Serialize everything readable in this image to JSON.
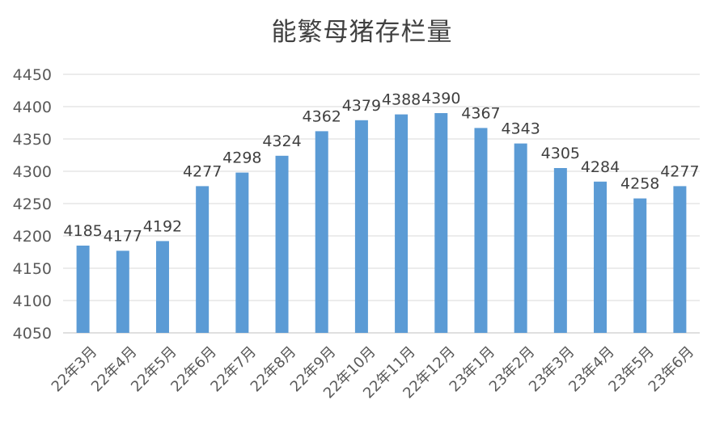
{
  "chart_data": {
    "type": "bar",
    "title": "能繁母猪存栏量",
    "categories": [
      "22年3月",
      "22年4月",
      "22年5月",
      "22年6月",
      "22年7月",
      "22年8月",
      "22年9月",
      "22年10月",
      "22年11月",
      "22年12月",
      "23年1月",
      "23年2月",
      "23年3月",
      "23年4月",
      "23年5月",
      "23年6月"
    ],
    "values": [
      4185,
      4177,
      4192,
      4277,
      4298,
      4324,
      4362,
      4379,
      4388,
      4390,
      4367,
      4343,
      4305,
      4284,
      4258,
      4277
    ],
    "yticks": [
      "4050",
      "4100",
      "4150",
      "4200",
      "4250",
      "4300",
      "4350",
      "4400",
      "4450"
    ],
    "ylim": [
      4050,
      4450
    ],
    "grid": true,
    "bar_color": "#5b9bd5",
    "data_labels": true,
    "xlabel": "",
    "ylabel": ""
  }
}
